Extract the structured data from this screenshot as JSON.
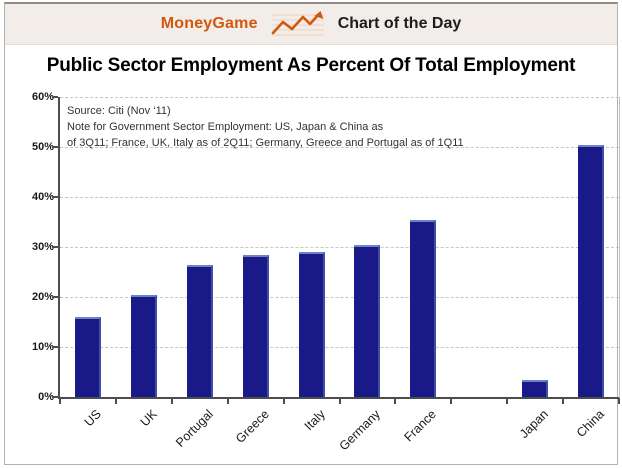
{
  "header": {
    "brand": "MoneyGame",
    "title": "Chart of the Day"
  },
  "title": "Public Sector Employment As Percent Of Total Employment",
  "note": {
    "lines": [
      "Source: Citi (Nov ‘11)",
      "Note for Government Sector Employment: US, Japan & China as",
      "of 3Q11; France, UK, Italy as of 2Q11; Germany, Greece and Portugal as of 1Q11"
    ]
  },
  "colors": {
    "accent_orange": "#d4570e",
    "bar_navy": "#191987",
    "header_bg": "#f2ede8",
    "gridline": "#c6c6c6",
    "axis": "#4d4d4d"
  },
  "chart_data": {
    "type": "bar",
    "title": "Public Sector Employment As Percent Of Total Employment",
    "categories": [
      "US",
      "UK",
      "Portugal",
      "Greece",
      "Italy",
      "Germany",
      "France",
      "",
      "Japan",
      "China"
    ],
    "values": [
      16,
      20.5,
      26.5,
      28.5,
      29,
      30.5,
      35.5,
      null,
      3.5,
      50.5
    ],
    "xlabel": "",
    "ylabel": "",
    "ylim": [
      0,
      60
    ],
    "ytick_step": 10,
    "ytick_labels": [
      "0%",
      "10%",
      "20%",
      "30%",
      "40%",
      "50%",
      "60%"
    ],
    "grid": "horizontal-dashed",
    "legend": "none",
    "bar_color": "#191987",
    "source": "Source: Citi (Nov ‘11)"
  }
}
